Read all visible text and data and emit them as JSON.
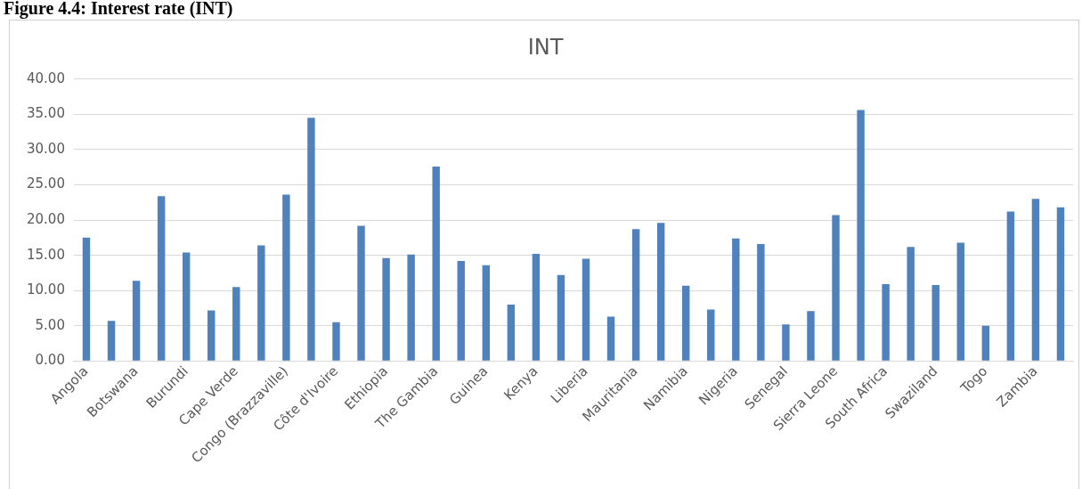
{
  "chart_data": {
    "type": "bar",
    "title": "INT",
    "annotations": [
      "Figure 4.4: Interest rate (INT)"
    ],
    "categories": [
      "Angola",
      null,
      "Botswana",
      null,
      "Burundi",
      null,
      "Cape Verde",
      null,
      "Congo (Brazzaville)",
      null,
      "Côte d'Ivoire",
      null,
      "Ethiopia",
      null,
      "The Gambia",
      null,
      "Guinea",
      null,
      "Kenya",
      null,
      "Liberia",
      null,
      "Mauritania",
      null,
      "Namibia",
      null,
      "Nigeria",
      null,
      "Senegal",
      null,
      "Sierra Leone",
      null,
      "South Africa",
      null,
      "Swaziland",
      null,
      "Togo",
      null,
      "Zambia",
      null
    ],
    "values": [
      17.5,
      5.7,
      11.4,
      23.4,
      15.4,
      7.2,
      10.5,
      16.4,
      23.6,
      34.5,
      5.5,
      19.2,
      14.6,
      15.1,
      27.6,
      14.2,
      13.6,
      8.0,
      15.2,
      12.2,
      14.5,
      6.3,
      18.7,
      19.6,
      10.7,
      7.3,
      17.4,
      16.6,
      5.2,
      7.1,
      20.7,
      35.6,
      10.9,
      16.2,
      10.8,
      16.8,
      5.0,
      21.2,
      23.0,
      21.8
    ],
    "color": "#4f81bd",
    "ylim": [
      0,
      40
    ],
    "yticks": [
      {
        "value": 0,
        "label": "0.00"
      },
      {
        "value": 5,
        "label": "5.00"
      },
      {
        "value": 10,
        "label": "10.00"
      },
      {
        "value": 15,
        "label": "15.00"
      },
      {
        "value": 20,
        "label": "20.00"
      },
      {
        "value": 25,
        "label": "25.00"
      },
      {
        "value": 30,
        "label": "30.00"
      },
      {
        "value": 35,
        "label": "35.00"
      },
      {
        "value": 40,
        "label": "40.00"
      }
    ],
    "grid": "y",
    "legend": false
  }
}
